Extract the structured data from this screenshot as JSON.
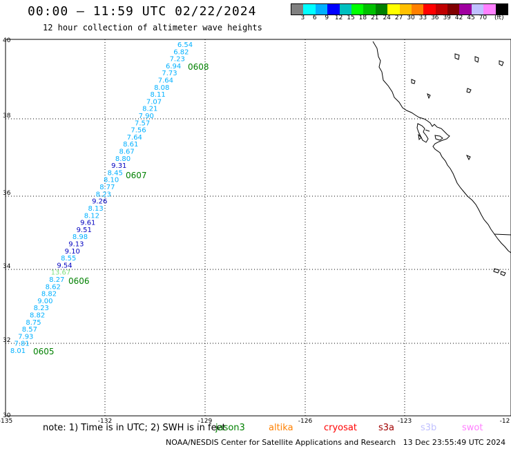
{
  "header": {
    "title": "00:00 – 11:59 UTC 02/22/2024",
    "subtitle": "12 hour collection of altimeter wave heights"
  },
  "colorbar": {
    "colors": [
      "#808080",
      "#00ffff",
      "#00b0ff",
      "#0000ff",
      "#00c0c0",
      "#00ff00",
      "#00c000",
      "#008000",
      "#ffff00",
      "#ffc000",
      "#ff8000",
      "#ff0000",
      "#c00000",
      "#800000",
      "#a000a0",
      "#c0c0ff",
      "#ff80ff",
      "#000000"
    ],
    "labels": [
      "3",
      "6",
      "9",
      "12",
      "15",
      "18",
      "21",
      "24",
      "27",
      "30",
      "33",
      "36",
      "39",
      "42",
      "45",
      "70",
      "(ft)"
    ]
  },
  "axes": {
    "lon_ticks": [
      "-135",
      "-132",
      "-129",
      "-126",
      "-123",
      "-12"
    ],
    "lat_ticks": [
      "40",
      "38",
      "36",
      "34",
      "32",
      "30"
    ]
  },
  "track": {
    "points": [
      {
        "v": "6.54",
        "c": "#00b0ff"
      },
      {
        "v": "6.82",
        "c": "#00b0ff"
      },
      {
        "v": "7.23",
        "c": "#00b0ff"
      },
      {
        "v": "6.94",
        "c": "#00b0ff"
      },
      {
        "v": "7.73",
        "c": "#00b0ff"
      },
      {
        "v": "7.64",
        "c": "#00b0ff"
      },
      {
        "v": "8.08",
        "c": "#00b0ff"
      },
      {
        "v": "8.11",
        "c": "#00b0ff"
      },
      {
        "v": "7.07",
        "c": "#00b0ff"
      },
      {
        "v": "8.21",
        "c": "#00b0ff"
      },
      {
        "v": "7.90",
        "c": "#00b0ff"
      },
      {
        "v": "7.57",
        "c": "#00b0ff"
      },
      {
        "v": "7.56",
        "c": "#00b0ff"
      },
      {
        "v": "7.64",
        "c": "#00b0ff"
      },
      {
        "v": "8.61",
        "c": "#00b0ff"
      },
      {
        "v": "8.67",
        "c": "#00b0ff"
      },
      {
        "v": "8.80",
        "c": "#00b0ff"
      },
      {
        "v": "9.31",
        "c": "#0000c0"
      },
      {
        "v": "8.45",
        "c": "#00b0ff"
      },
      {
        "v": "8.10",
        "c": "#00b0ff"
      },
      {
        "v": "8.77",
        "c": "#00b0ff"
      },
      {
        "v": "8.23",
        "c": "#00b0ff"
      },
      {
        "v": "9.26",
        "c": "#0000c0"
      },
      {
        "v": "8.13",
        "c": "#00b0ff"
      },
      {
        "v": "8.12",
        "c": "#00b0ff"
      },
      {
        "v": "9.61",
        "c": "#0000c0"
      },
      {
        "v": "9.51",
        "c": "#0000c0"
      },
      {
        "v": "8.98",
        "c": "#00b0ff"
      },
      {
        "v": "9.13",
        "c": "#0000c0"
      },
      {
        "v": "9.10",
        "c": "#0000c0"
      },
      {
        "v": "8.55",
        "c": "#00b0ff"
      },
      {
        "v": "9.54",
        "c": "#0000c0"
      },
      {
        "v": "13.67",
        "c": "#80e080"
      },
      {
        "v": "8.27",
        "c": "#00b0ff"
      },
      {
        "v": "8.62",
        "c": "#00b0ff"
      },
      {
        "v": "8.82",
        "c": "#00b0ff"
      },
      {
        "v": "9.00",
        "c": "#00b0ff"
      },
      {
        "v": "8.23",
        "c": "#00b0ff"
      },
      {
        "v": "8.82",
        "c": "#00b0ff"
      },
      {
        "v": "8.75",
        "c": "#00b0ff"
      },
      {
        "v": "8.57",
        "c": "#00b0ff"
      },
      {
        "v": "7.93",
        "c": "#00b0ff"
      },
      {
        "v": "7.81",
        "c": "#00b0ff"
      },
      {
        "v": "8.01",
        "c": "#00b0ff"
      }
    ],
    "time_labels": [
      "0608",
      "0607",
      "0606",
      "0605"
    ]
  },
  "footer": {
    "note": "note: 1) Time is in UTC; 2) SWH is in feet",
    "legend": [
      {
        "name": "jason3",
        "color": "#008000"
      },
      {
        "name": "altika",
        "color": "#ff8000"
      },
      {
        "name": "cryosat",
        "color": "#ff0000"
      },
      {
        "name": "s3a",
        "color": "#a00000"
      },
      {
        "name": "s3b",
        "color": "#c0c0ff"
      },
      {
        "name": "swot",
        "color": "#ff80ff"
      }
    ],
    "credit": "NOAA/NESDIS Center for Satellite Applications and Research   13 Dec 23:55:49 UTC 2024"
  }
}
